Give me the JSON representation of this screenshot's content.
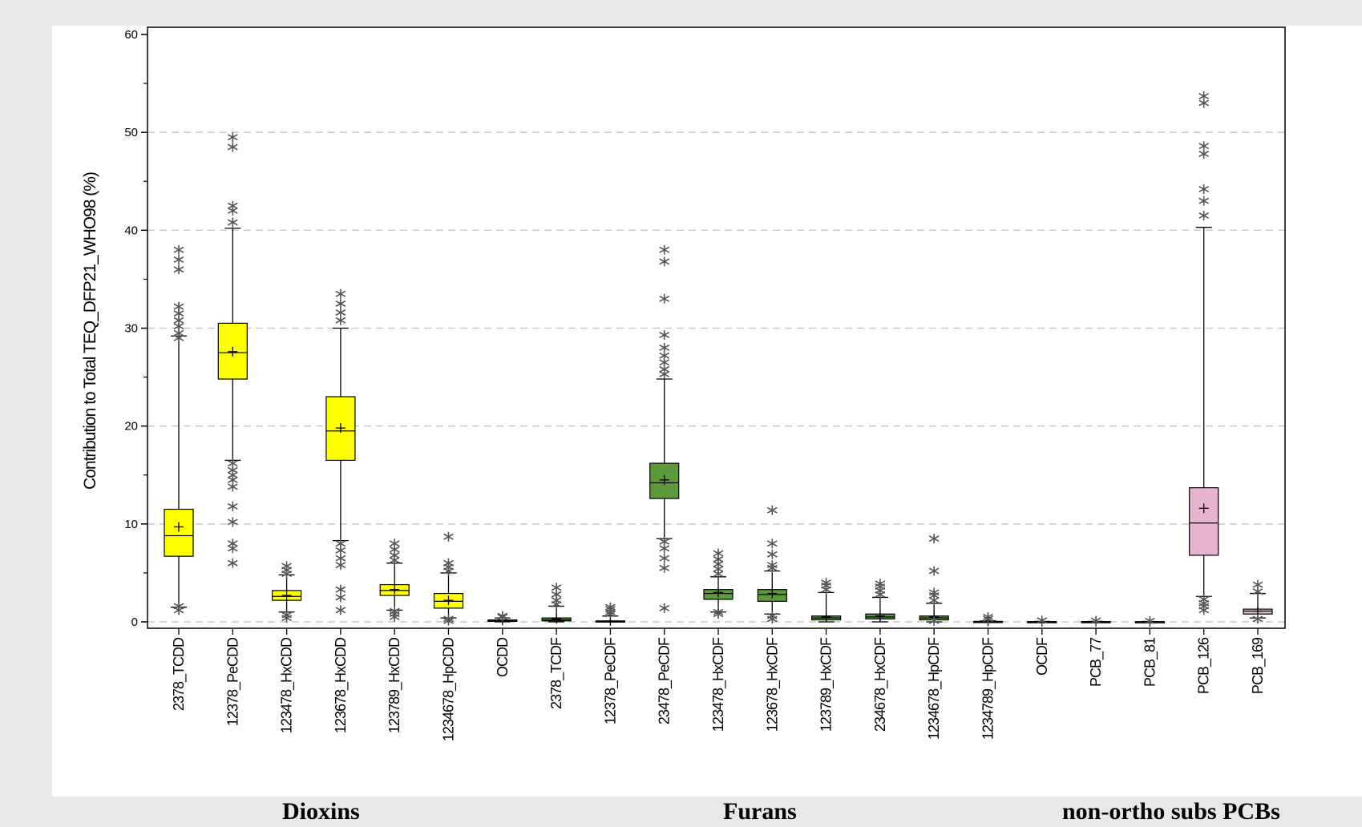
{
  "chart_data": {
    "type": "boxplot",
    "ylabel": "Contribution to Total TEQ_DFP21_WHO98 (%)",
    "ylim": [
      0,
      60
    ],
    "yticks": [
      "0",
      "10",
      "20",
      "30",
      "40",
      "50",
      "60"
    ],
    "grid": "horizontal dashed",
    "categories": [
      "2378_TCDD",
      "12378_PeCDD",
      "123478_HxCDD",
      "123678_HxCDD",
      "123789_HxCDD",
      "1234678_HpCDD",
      "OCDD",
      "2378_TCDF",
      "12378_PeCDF",
      "23478_PeCDF",
      "123478_HxCDF",
      "123678_HxCDF",
      "123789_HxCDF",
      "234678_HxCDF",
      "1234678_HpCDF",
      "1234789_HpCDF",
      "OCDF",
      "PCB_77",
      "PCB_81",
      "PCB_126",
      "PCB_169"
    ],
    "groups": [
      {
        "label": "Dioxins",
        "color": "#ffff00",
        "members": 7
      },
      {
        "label": "Furans",
        "color": "#5a9a3a",
        "members": 10
      },
      {
        "label": "non-ortho subs  PCBs",
        "color": "#e8b4d0",
        "members": 4
      }
    ],
    "boxes": [
      {
        "q1": 6.7,
        "median": 8.8,
        "q3": 11.5,
        "mean": 9.7,
        "wlow": 1.5,
        "whigh": 29.2,
        "outliers": [
          1.2,
          1.6,
          29.0,
          29.5,
          30.2,
          30.8,
          31.5,
          32.2,
          36.0,
          37.0,
          38.0
        ]
      },
      {
        "q1": 24.8,
        "median": 27.5,
        "q3": 30.5,
        "mean": 27.6,
        "wlow": 16.5,
        "whigh": 40.2,
        "outliers": [
          6.0,
          7.5,
          8.0,
          10.2,
          11.8,
          13.8,
          14.5,
          15.0,
          15.5,
          16.2,
          40.8,
          42.0,
          42.5,
          48.5,
          49.5
        ]
      },
      {
        "q1": 2.2,
        "median": 2.6,
        "q3": 3.2,
        "mean": 2.7,
        "wlow": 1.0,
        "whigh": 4.8,
        "outliers": [
          0.4,
          0.7,
          4.9,
          5.3,
          5.7
        ]
      },
      {
        "q1": 16.5,
        "median": 19.5,
        "q3": 23.0,
        "mean": 19.8,
        "wlow": 8.3,
        "whigh": 30.0,
        "outliers": [
          1.2,
          2.5,
          3.3,
          5.8,
          6.5,
          7.3,
          8.0,
          30.8,
          31.6,
          32.5,
          33.5
        ]
      },
      {
        "q1": 2.7,
        "median": 3.2,
        "q3": 3.8,
        "mean": 3.3,
        "wlow": 1.2,
        "whigh": 6.0,
        "outliers": [
          0.5,
          0.8,
          1.1,
          6.3,
          6.8,
          7.4,
          8.0
        ]
      },
      {
        "q1": 1.4,
        "median": 2.1,
        "q3": 2.9,
        "mean": 2.2,
        "wlow": 0.4,
        "whigh": 5.0,
        "outliers": [
          0.1,
          0.3,
          5.2,
          5.6,
          6.0,
          8.7
        ]
      },
      {
        "q1": 0.05,
        "median": 0.1,
        "q3": 0.2,
        "mean": 0.15,
        "wlow": 0.0,
        "whigh": 0.4,
        "outliers": [
          0.5,
          0.6
        ]
      },
      {
        "q1": 0.1,
        "median": 0.2,
        "q3": 0.4,
        "mean": 0.3,
        "wlow": 0.0,
        "whigh": 1.6,
        "outliers": [
          1.8,
          2.2,
          2.8,
          3.5
        ]
      },
      {
        "q1": 0.02,
        "median": 0.05,
        "q3": 0.1,
        "mean": 0.08,
        "wlow": 0.0,
        "whigh": 0.6,
        "outliers": [
          0.8,
          1.0,
          1.3,
          1.5
        ]
      },
      {
        "q1": 12.6,
        "median": 14.2,
        "q3": 16.2,
        "mean": 14.5,
        "wlow": 8.5,
        "whigh": 24.8,
        "outliers": [
          1.4,
          5.5,
          6.5,
          7.5,
          8.2,
          25.3,
          25.8,
          26.5,
          27.2,
          28.0,
          29.3,
          33.0,
          36.8,
          38.0
        ]
      },
      {
        "q1": 2.3,
        "median": 2.9,
        "q3": 3.3,
        "mean": 3.0,
        "wlow": 1.0,
        "whigh": 4.6,
        "outliers": [
          0.8,
          1.0,
          4.9,
          5.4,
          5.9,
          6.4,
          7.0
        ]
      },
      {
        "q1": 2.1,
        "median": 2.8,
        "q3": 3.3,
        "mean": 2.9,
        "wlow": 0.8,
        "whigh": 5.2,
        "outliers": [
          0.3,
          0.6,
          5.5,
          5.8,
          6.9,
          8.0,
          11.4
        ]
      },
      {
        "q1": 0.2,
        "median": 0.4,
        "q3": 0.6,
        "mean": 0.5,
        "wlow": 0.0,
        "whigh": 3.0,
        "outliers": [
          3.3,
          3.7,
          4.0
        ]
      },
      {
        "q1": 0.3,
        "median": 0.5,
        "q3": 0.8,
        "mean": 0.6,
        "wlow": 0.0,
        "whigh": 2.5,
        "outliers": [
          2.8,
          3.2,
          3.6,
          3.9
        ]
      },
      {
        "q1": 0.2,
        "median": 0.4,
        "q3": 0.6,
        "mean": 0.5,
        "wlow": 0.0,
        "whigh": 1.9,
        "outliers": [
          0.1,
          2.2,
          2.7,
          3.0,
          5.2,
          8.5
        ]
      },
      {
        "q1": 0.0,
        "median": 0.02,
        "q3": 0.05,
        "mean": 0.05,
        "wlow": 0.0,
        "whigh": 0.1,
        "outliers": [
          0.3,
          0.5
        ]
      },
      {
        "q1": 0.0,
        "median": 0.01,
        "q3": 0.03,
        "mean": 0.02,
        "wlow": 0.0,
        "whigh": 0.05,
        "outliers": [
          0.15
        ]
      },
      {
        "q1": 0.0,
        "median": 0.01,
        "q3": 0.03,
        "mean": 0.02,
        "wlow": 0.0,
        "whigh": 0.05,
        "outliers": [
          0.12
        ]
      },
      {
        "q1": 0.0,
        "median": 0.01,
        "q3": 0.02,
        "mean": 0.01,
        "wlow": 0.0,
        "whigh": 0.04,
        "outliers": [
          0.1
        ]
      },
      {
        "q1": 6.8,
        "median": 10.1,
        "q3": 13.7,
        "mean": 11.6,
        "wlow": 2.6,
        "whigh": 40.3,
        "outliers": [
          1.2,
          1.6,
          1.9,
          2.3,
          41.5,
          43.0,
          44.2,
          47.8,
          48.6,
          53.0,
          53.7
        ]
      },
      {
        "q1": 0.8,
        "median": 1.1,
        "q3": 1.3,
        "mean": 1.1,
        "wlow": 0.4,
        "whigh": 2.9,
        "outliers": [
          0.3,
          3.1,
          3.8
        ]
      }
    ]
  }
}
